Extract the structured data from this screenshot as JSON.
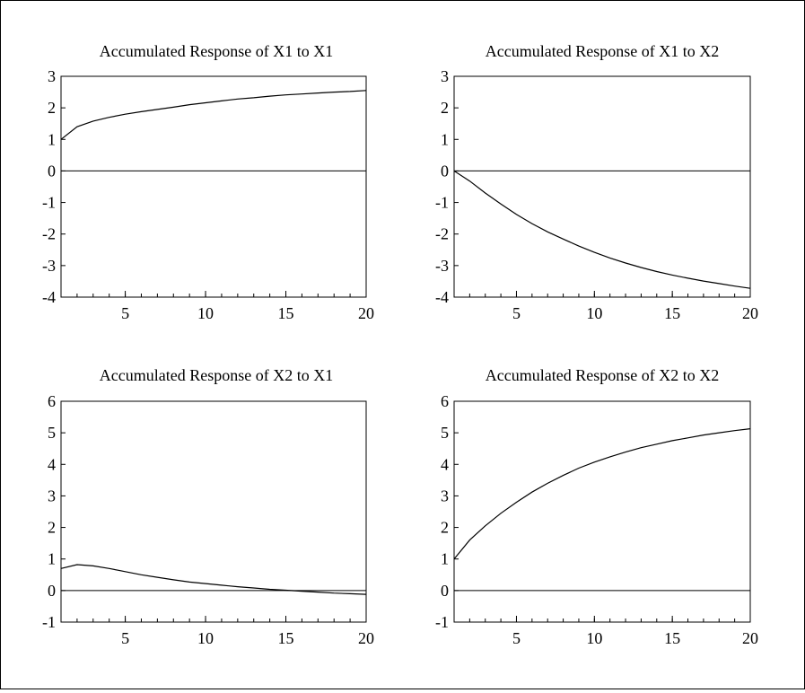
{
  "chart_data": [
    {
      "type": "line",
      "title": "Accumulated Response of X1 to X1",
      "xlabel": "",
      "ylabel": "",
      "xlim": [
        1,
        20
      ],
      "ylim": [
        -4,
        3
      ],
      "xticks": [
        5,
        10,
        15,
        20
      ],
      "yticks": [
        3,
        2,
        1,
        0,
        -1,
        -2,
        -3,
        -4
      ],
      "zero_line": true,
      "series": [
        {
          "x": [
            1,
            2,
            3,
            4,
            5,
            6,
            7,
            8,
            9,
            10,
            11,
            12,
            13,
            14,
            15,
            16,
            17,
            18,
            19,
            20
          ],
          "values": [
            1.0,
            1.4,
            1.58,
            1.7,
            1.8,
            1.88,
            1.95,
            2.02,
            2.1,
            2.16,
            2.22,
            2.28,
            2.32,
            2.37,
            2.41,
            2.44,
            2.47,
            2.5,
            2.52,
            2.55
          ]
        }
      ]
    },
    {
      "type": "line",
      "title": "Accumulated Response of X1 to X2",
      "xlabel": "",
      "ylabel": "",
      "xlim": [
        1,
        20
      ],
      "ylim": [
        -4,
        3
      ],
      "xticks": [
        5,
        10,
        15,
        20
      ],
      "yticks": [
        3,
        2,
        1,
        0,
        -1,
        -2,
        -3,
        -4
      ],
      "zero_line": true,
      "series": [
        {
          "x": [
            1,
            2,
            3,
            4,
            5,
            6,
            7,
            8,
            9,
            10,
            11,
            12,
            13,
            14,
            15,
            16,
            17,
            18,
            19,
            20
          ],
          "values": [
            0.0,
            -0.32,
            -0.7,
            -1.05,
            -1.38,
            -1.67,
            -1.93,
            -2.16,
            -2.38,
            -2.58,
            -2.76,
            -2.92,
            -3.06,
            -3.19,
            -3.3,
            -3.4,
            -3.49,
            -3.57,
            -3.65,
            -3.72
          ]
        }
      ]
    },
    {
      "type": "line",
      "title": "Accumulated Response of X2 to X1",
      "xlabel": "",
      "ylabel": "",
      "xlim": [
        1,
        20
      ],
      "ylim": [
        -1,
        6
      ],
      "xticks": [
        5,
        10,
        15,
        20
      ],
      "yticks": [
        6,
        5,
        4,
        3,
        2,
        1,
        0,
        -1
      ],
      "zero_line": true,
      "series": [
        {
          "x": [
            1,
            2,
            3,
            4,
            5,
            6,
            7,
            8,
            9,
            10,
            11,
            12,
            13,
            14,
            15,
            16,
            17,
            18,
            19,
            20
          ],
          "values": [
            0.7,
            0.82,
            0.78,
            0.7,
            0.6,
            0.5,
            0.42,
            0.34,
            0.27,
            0.22,
            0.17,
            0.12,
            0.08,
            0.04,
            0.01,
            -0.02,
            -0.05,
            -0.08,
            -0.1,
            -0.12
          ]
        }
      ]
    },
    {
      "type": "line",
      "title": "Accumulated Response of X2 to X2",
      "xlabel": "",
      "ylabel": "",
      "xlim": [
        1,
        20
      ],
      "ylim": [
        -1,
        6
      ],
      "xticks": [
        5,
        10,
        15,
        20
      ],
      "yticks": [
        6,
        5,
        4,
        3,
        2,
        1,
        0,
        -1
      ],
      "zero_line": true,
      "series": [
        {
          "x": [
            1,
            2,
            3,
            4,
            5,
            6,
            7,
            8,
            9,
            10,
            11,
            12,
            13,
            14,
            15,
            16,
            17,
            18,
            19,
            20
          ],
          "values": [
            1.0,
            1.6,
            2.05,
            2.45,
            2.8,
            3.12,
            3.4,
            3.65,
            3.88,
            4.07,
            4.24,
            4.39,
            4.53,
            4.64,
            4.75,
            4.84,
            4.93,
            5.0,
            5.07,
            5.13
          ]
        }
      ]
    }
  ]
}
